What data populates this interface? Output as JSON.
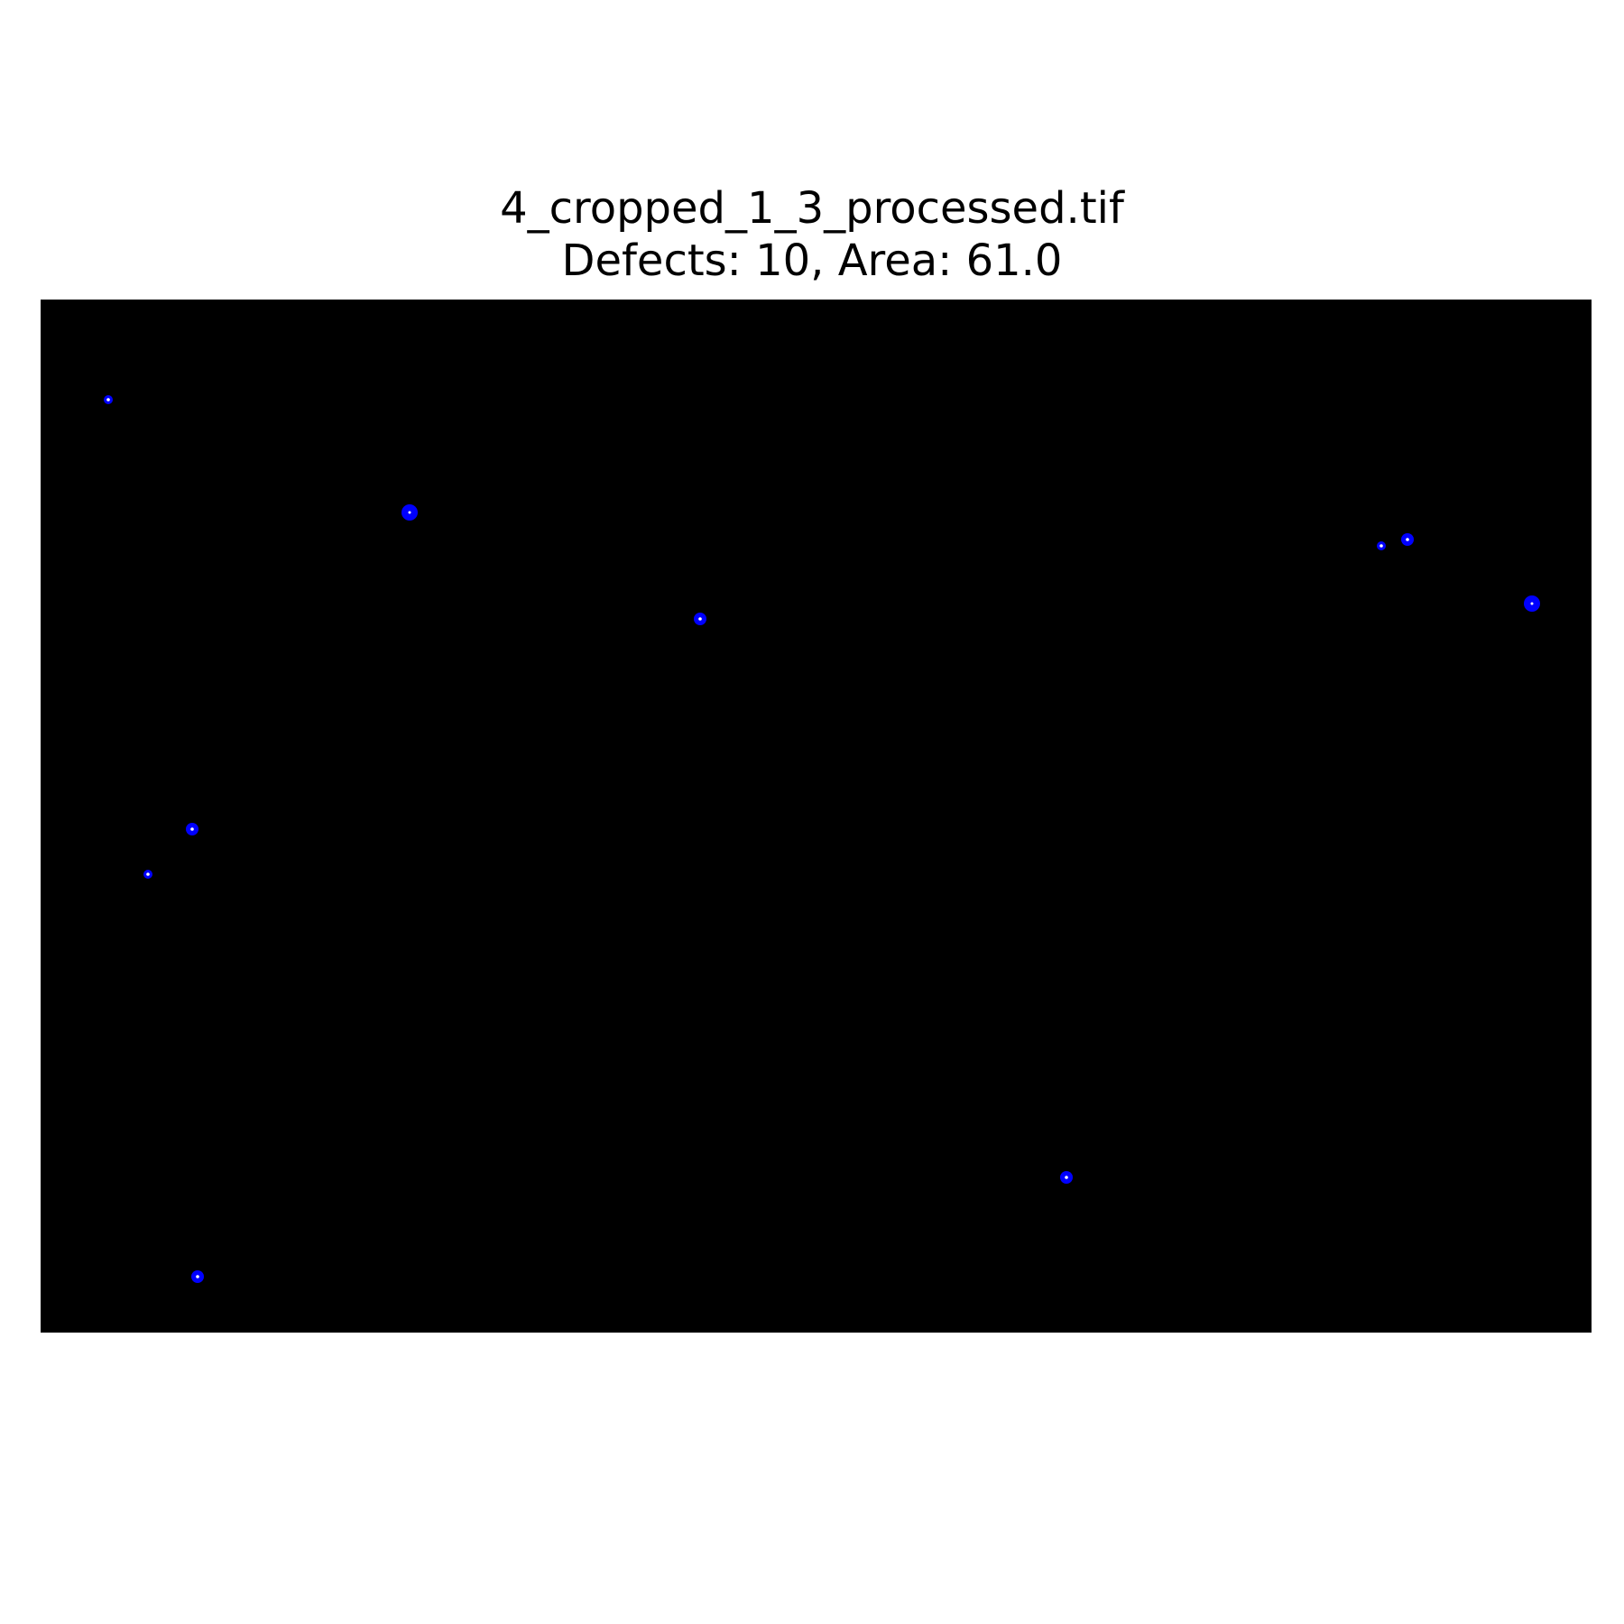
{
  "figure": {
    "filename": "4_cropped_1_3_processed.tif",
    "summary": "Defects: 10, Area: 61.0"
  },
  "colors": {
    "background": "#000000",
    "defect_marker": "#0000ff",
    "defect_core": "#ffffff"
  },
  "defects": [
    {
      "id": 1,
      "size": "small"
    },
    {
      "id": 2,
      "size": "large"
    },
    {
      "id": 3,
      "size": "medium"
    },
    {
      "id": 4,
      "size": "small"
    },
    {
      "id": 5,
      "size": "medium"
    },
    {
      "id": 6,
      "size": "large"
    },
    {
      "id": 7,
      "size": "medium"
    },
    {
      "id": 8,
      "size": "small"
    },
    {
      "id": 9,
      "size": "medium"
    },
    {
      "id": 10,
      "size": "medium"
    }
  ]
}
